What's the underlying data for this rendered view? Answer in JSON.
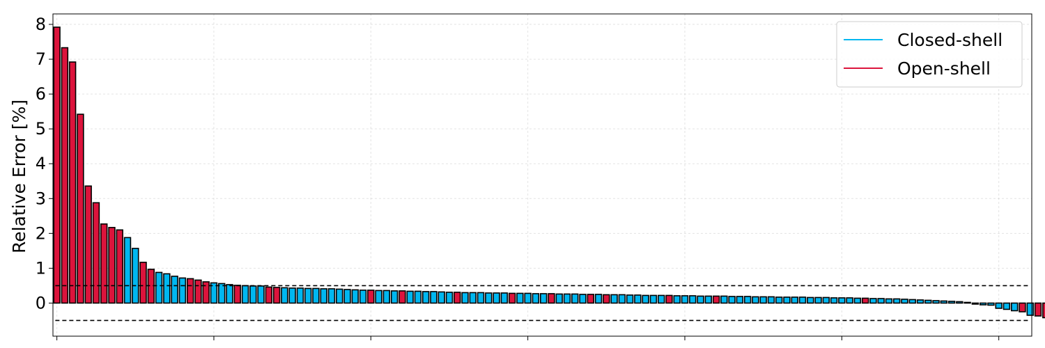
{
  "chart_data": {
    "type": "bar",
    "ylabel": "Relative Error [%]",
    "xlabel": "",
    "ylim": [
      -0.95,
      8.3
    ],
    "xlim": [
      -0.5,
      124.2
    ],
    "yticks": [
      0,
      1,
      2,
      3,
      4,
      5,
      6,
      7,
      8
    ],
    "xticks": [
      0,
      20,
      40,
      60,
      80,
      100,
      120
    ],
    "grid": true,
    "legend_position": "top-right",
    "reference_lines": [
      0.5,
      -0.5
    ],
    "colors": {
      "Closed-shell": "#00b7f0",
      "Open-shell": "#dc143c"
    },
    "series": [
      {
        "name": "Closed-shell"
      },
      {
        "name": "Open-shell"
      }
    ],
    "bars": [
      {
        "v": 7.92,
        "s": "Open-shell"
      },
      {
        "v": 7.33,
        "s": "Open-shell"
      },
      {
        "v": 6.92,
        "s": "Open-shell"
      },
      {
        "v": 5.42,
        "s": "Open-shell"
      },
      {
        "v": 3.36,
        "s": "Open-shell"
      },
      {
        "v": 2.88,
        "s": "Open-shell"
      },
      {
        "v": 2.27,
        "s": "Open-shell"
      },
      {
        "v": 2.17,
        "s": "Open-shell"
      },
      {
        "v": 2.1,
        "s": "Open-shell"
      },
      {
        "v": 1.88,
        "s": "Closed-shell"
      },
      {
        "v": 1.57,
        "s": "Closed-shell"
      },
      {
        "v": 1.17,
        "s": "Open-shell"
      },
      {
        "v": 0.97,
        "s": "Open-shell"
      },
      {
        "v": 0.88,
        "s": "Closed-shell"
      },
      {
        "v": 0.84,
        "s": "Closed-shell"
      },
      {
        "v": 0.77,
        "s": "Closed-shell"
      },
      {
        "v": 0.72,
        "s": "Closed-shell"
      },
      {
        "v": 0.7,
        "s": "Open-shell"
      },
      {
        "v": 0.66,
        "s": "Open-shell"
      },
      {
        "v": 0.61,
        "s": "Open-shell"
      },
      {
        "v": 0.58,
        "s": "Closed-shell"
      },
      {
        "v": 0.56,
        "s": "Closed-shell"
      },
      {
        "v": 0.53,
        "s": "Closed-shell"
      },
      {
        "v": 0.51,
        "s": "Open-shell"
      },
      {
        "v": 0.5,
        "s": "Closed-shell"
      },
      {
        "v": 0.49,
        "s": "Closed-shell"
      },
      {
        "v": 0.49,
        "s": "Closed-shell"
      },
      {
        "v": 0.46,
        "s": "Open-shell"
      },
      {
        "v": 0.45,
        "s": "Open-shell"
      },
      {
        "v": 0.44,
        "s": "Closed-shell"
      },
      {
        "v": 0.43,
        "s": "Closed-shell"
      },
      {
        "v": 0.43,
        "s": "Closed-shell"
      },
      {
        "v": 0.42,
        "s": "Closed-shell"
      },
      {
        "v": 0.42,
        "s": "Closed-shell"
      },
      {
        "v": 0.41,
        "s": "Closed-shell"
      },
      {
        "v": 0.41,
        "s": "Closed-shell"
      },
      {
        "v": 0.4,
        "s": "Closed-shell"
      },
      {
        "v": 0.39,
        "s": "Closed-shell"
      },
      {
        "v": 0.38,
        "s": "Closed-shell"
      },
      {
        "v": 0.37,
        "s": "Closed-shell"
      },
      {
        "v": 0.37,
        "s": "Open-shell"
      },
      {
        "v": 0.36,
        "s": "Closed-shell"
      },
      {
        "v": 0.36,
        "s": "Closed-shell"
      },
      {
        "v": 0.35,
        "s": "Closed-shell"
      },
      {
        "v": 0.35,
        "s": "Open-shell"
      },
      {
        "v": 0.34,
        "s": "Closed-shell"
      },
      {
        "v": 0.34,
        "s": "Closed-shell"
      },
      {
        "v": 0.33,
        "s": "Closed-shell"
      },
      {
        "v": 0.33,
        "s": "Closed-shell"
      },
      {
        "v": 0.32,
        "s": "Closed-shell"
      },
      {
        "v": 0.31,
        "s": "Closed-shell"
      },
      {
        "v": 0.31,
        "s": "Open-shell"
      },
      {
        "v": 0.3,
        "s": "Closed-shell"
      },
      {
        "v": 0.3,
        "s": "Closed-shell"
      },
      {
        "v": 0.3,
        "s": "Closed-shell"
      },
      {
        "v": 0.29,
        "s": "Closed-shell"
      },
      {
        "v": 0.29,
        "s": "Closed-shell"
      },
      {
        "v": 0.29,
        "s": "Closed-shell"
      },
      {
        "v": 0.28,
        "s": "Open-shell"
      },
      {
        "v": 0.28,
        "s": "Closed-shell"
      },
      {
        "v": 0.28,
        "s": "Closed-shell"
      },
      {
        "v": 0.27,
        "s": "Closed-shell"
      },
      {
        "v": 0.27,
        "s": "Closed-shell"
      },
      {
        "v": 0.27,
        "s": "Open-shell"
      },
      {
        "v": 0.26,
        "s": "Closed-shell"
      },
      {
        "v": 0.26,
        "s": "Closed-shell"
      },
      {
        "v": 0.26,
        "s": "Closed-shell"
      },
      {
        "v": 0.25,
        "s": "Closed-shell"
      },
      {
        "v": 0.25,
        "s": "Open-shell"
      },
      {
        "v": 0.25,
        "s": "Closed-shell"
      },
      {
        "v": 0.24,
        "s": "Open-shell"
      },
      {
        "v": 0.24,
        "s": "Closed-shell"
      },
      {
        "v": 0.24,
        "s": "Closed-shell"
      },
      {
        "v": 0.23,
        "s": "Closed-shell"
      },
      {
        "v": 0.23,
        "s": "Closed-shell"
      },
      {
        "v": 0.22,
        "s": "Closed-shell"
      },
      {
        "v": 0.22,
        "s": "Closed-shell"
      },
      {
        "v": 0.22,
        "s": "Closed-shell"
      },
      {
        "v": 0.22,
        "s": "Open-shell"
      },
      {
        "v": 0.21,
        "s": "Closed-shell"
      },
      {
        "v": 0.21,
        "s": "Closed-shell"
      },
      {
        "v": 0.21,
        "s": "Closed-shell"
      },
      {
        "v": 0.2,
        "s": "Closed-shell"
      },
      {
        "v": 0.2,
        "s": "Closed-shell"
      },
      {
        "v": 0.2,
        "s": "Open-shell"
      },
      {
        "v": 0.2,
        "s": "Closed-shell"
      },
      {
        "v": 0.19,
        "s": "Closed-shell"
      },
      {
        "v": 0.19,
        "s": "Closed-shell"
      },
      {
        "v": 0.19,
        "s": "Closed-shell"
      },
      {
        "v": 0.18,
        "s": "Closed-shell"
      },
      {
        "v": 0.18,
        "s": "Closed-shell"
      },
      {
        "v": 0.18,
        "s": "Closed-shell"
      },
      {
        "v": 0.17,
        "s": "Closed-shell"
      },
      {
        "v": 0.17,
        "s": "Closed-shell"
      },
      {
        "v": 0.17,
        "s": "Closed-shell"
      },
      {
        "v": 0.17,
        "s": "Closed-shell"
      },
      {
        "v": 0.16,
        "s": "Closed-shell"
      },
      {
        "v": 0.16,
        "s": "Closed-shell"
      },
      {
        "v": 0.16,
        "s": "Closed-shell"
      },
      {
        "v": 0.15,
        "s": "Closed-shell"
      },
      {
        "v": 0.15,
        "s": "Closed-shell"
      },
      {
        "v": 0.15,
        "s": "Closed-shell"
      },
      {
        "v": 0.14,
        "s": "Closed-shell"
      },
      {
        "v": 0.14,
        "s": "Open-shell"
      },
      {
        "v": 0.13,
        "s": "Closed-shell"
      },
      {
        "v": 0.13,
        "s": "Closed-shell"
      },
      {
        "v": 0.12,
        "s": "Closed-shell"
      },
      {
        "v": 0.12,
        "s": "Closed-shell"
      },
      {
        "v": 0.11,
        "s": "Closed-shell"
      },
      {
        "v": 0.1,
        "s": "Closed-shell"
      },
      {
        "v": 0.09,
        "s": "Closed-shell"
      },
      {
        "v": 0.08,
        "s": "Closed-shell"
      },
      {
        "v": 0.07,
        "s": "Closed-shell"
      },
      {
        "v": 0.06,
        "s": "Closed-shell"
      },
      {
        "v": 0.05,
        "s": "Closed-shell"
      },
      {
        "v": 0.04,
        "s": "Closed-shell"
      },
      {
        "v": 0.02,
        "s": "Closed-shell"
      },
      {
        "v": -0.03,
        "s": "Closed-shell"
      },
      {
        "v": -0.05,
        "s": "Closed-shell"
      },
      {
        "v": -0.06,
        "s": "Closed-shell"
      },
      {
        "v": -0.15,
        "s": "Closed-shell"
      },
      {
        "v": -0.18,
        "s": "Closed-shell"
      },
      {
        "v": -0.22,
        "s": "Closed-shell"
      },
      {
        "v": -0.25,
        "s": "Open-shell"
      },
      {
        "v": -0.35,
        "s": "Closed-shell"
      },
      {
        "v": -0.37,
        "s": "Open-shell"
      },
      {
        "v": -0.42,
        "s": "Open-shell"
      }
    ]
  }
}
